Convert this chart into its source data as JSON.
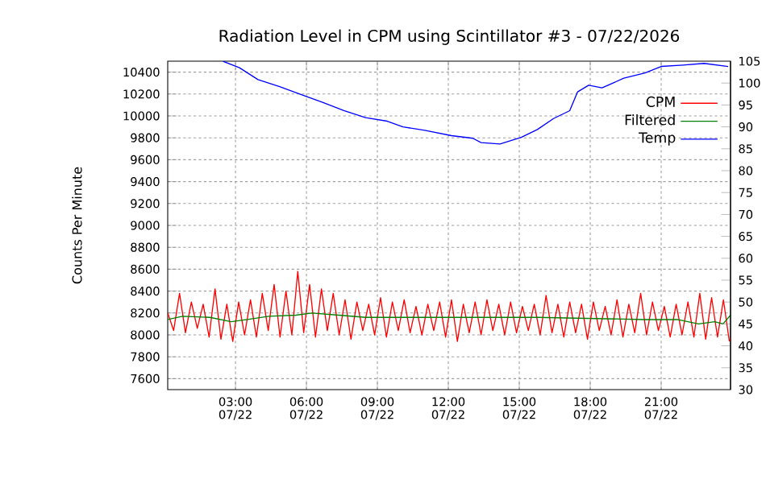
{
  "chart_data": {
    "type": "line",
    "title": "Radiation Level in CPM using Scintillator #3 - 07/22/2026",
    "ylabel": "Counts Per Minute",
    "xlim": [
      "2026-07-22T00:08",
      "2026-07-22T23:56"
    ],
    "ylim": [
      7500,
      10500
    ],
    "y2lim": [
      30,
      105
    ],
    "xticks": [
      {
        "value": "2026-07-22T03:00",
        "label": "03:00 07/22"
      },
      {
        "value": "2026-07-22T06:00",
        "label": "06:00 07/22"
      },
      {
        "value": "2026-07-22T09:00",
        "label": "09:00 07/22"
      },
      {
        "value": "2026-07-22T12:00",
        "label": "12:00 07/22"
      },
      {
        "value": "2026-07-22T15:00",
        "label": "15:00 07/22"
      },
      {
        "value": "2026-07-22T18:00",
        "label": "18:00 07/22"
      },
      {
        "value": "2026-07-22T21:00",
        "label": "21:00 07/22"
      }
    ],
    "yticks": [
      7600,
      7800,
      8000,
      8200,
      8400,
      8600,
      8800,
      9000,
      9200,
      9400,
      9600,
      9800,
      10000,
      10200,
      10400
    ],
    "y2ticks": [
      30,
      35,
      40,
      45,
      50,
      55,
      60,
      65,
      70,
      75,
      80,
      85,
      90,
      95,
      100,
      105
    ],
    "grid": true,
    "legend": "top right",
    "series": [
      {
        "name": "CPM",
        "color": "#ff0000",
        "x": [
          "2026-07-22T00:08",
          "2026-07-22T00:23",
          "2026-07-22T00:38",
          "2026-07-22T00:53",
          "2026-07-22T01:08",
          "2026-07-22T01:23",
          "2026-07-22T01:38",
          "2026-07-22T01:53",
          "2026-07-22T02:08",
          "2026-07-22T02:23",
          "2026-07-22T02:38",
          "2026-07-22T02:53",
          "2026-07-22T03:08",
          "2026-07-22T03:23",
          "2026-07-22T03:38",
          "2026-07-22T03:53",
          "2026-07-22T04:08",
          "2026-07-22T04:23",
          "2026-07-22T04:38",
          "2026-07-22T04:53",
          "2026-07-22T05:08",
          "2026-07-22T05:23",
          "2026-07-22T05:38",
          "2026-07-22T05:53",
          "2026-07-22T06:08",
          "2026-07-22T06:23",
          "2026-07-22T06:38",
          "2026-07-22T06:53",
          "2026-07-22T07:08",
          "2026-07-22T07:23",
          "2026-07-22T07:38",
          "2026-07-22T07:53",
          "2026-07-22T08:08",
          "2026-07-22T08:23",
          "2026-07-22T08:38",
          "2026-07-22T08:53",
          "2026-07-22T09:08",
          "2026-07-22T09:23",
          "2026-07-22T09:38",
          "2026-07-22T09:53",
          "2026-07-22T10:08",
          "2026-07-22T10:23",
          "2026-07-22T10:38",
          "2026-07-22T10:53",
          "2026-07-22T11:08",
          "2026-07-22T11:23",
          "2026-07-22T11:38",
          "2026-07-22T11:53",
          "2026-07-22T12:08",
          "2026-07-22T12:23",
          "2026-07-22T12:38",
          "2026-07-22T12:53",
          "2026-07-22T13:08",
          "2026-07-22T13:23",
          "2026-07-22T13:38",
          "2026-07-22T13:53",
          "2026-07-22T14:08",
          "2026-07-22T14:23",
          "2026-07-22T14:38",
          "2026-07-22T14:53",
          "2026-07-22T15:08",
          "2026-07-22T15:23",
          "2026-07-22T15:38",
          "2026-07-22T15:53",
          "2026-07-22T16:08",
          "2026-07-22T16:23",
          "2026-07-22T16:38",
          "2026-07-22T16:53",
          "2026-07-22T17:08",
          "2026-07-22T17:23",
          "2026-07-22T17:38",
          "2026-07-22T17:53",
          "2026-07-22T18:08",
          "2026-07-22T18:23",
          "2026-07-22T18:38",
          "2026-07-22T18:53",
          "2026-07-22T19:08",
          "2026-07-22T19:23",
          "2026-07-22T19:38",
          "2026-07-22T19:53",
          "2026-07-22T20:08",
          "2026-07-22T20:23",
          "2026-07-22T20:38",
          "2026-07-22T20:53",
          "2026-07-22T21:08",
          "2026-07-22T21:23",
          "2026-07-22T21:38",
          "2026-07-22T21:53",
          "2026-07-22T22:08",
          "2026-07-22T22:23",
          "2026-07-22T22:38",
          "2026-07-22T22:53",
          "2026-07-22T23:08",
          "2026-07-22T23:23",
          "2026-07-22T23:38",
          "2026-07-22T23:53"
        ],
        "values": [
          8200,
          8040,
          8380,
          8020,
          8300,
          8060,
          8280,
          7980,
          8420,
          7960,
          8280,
          7940,
          8300,
          8000,
          8320,
          7980,
          8380,
          8040,
          8460,
          7980,
          8400,
          8000,
          8580,
          8020,
          8460,
          7980,
          8420,
          8040,
          8380,
          8000,
          8320,
          7960,
          8300,
          8040,
          8280,
          8000,
          8340,
          7980,
          8300,
          8040,
          8320,
          8020,
          8260,
          8000,
          8280,
          8040,
          8300,
          7980,
          8320,
          7940,
          8280,
          8020,
          8300,
          8000,
          8320,
          8040,
          8280,
          8000,
          8300,
          8020,
          8260,
          8040,
          8280,
          8000,
          8360,
          8020,
          8280,
          7980,
          8300,
          8020,
          8280,
          7960,
          8300,
          8040,
          8260,
          8000,
          8320,
          7980,
          8280,
          8020,
          8380,
          8000,
          8300,
          8040,
          8260,
          7980,
          8280,
          8000,
          8300,
          7980,
          8380,
          7960,
          8340,
          7980,
          8320,
          7940
        ]
      },
      {
        "name": "Filtered",
        "color": "#008000",
        "x": [
          "2026-07-22T00:08",
          "2026-07-22T00:46",
          "2026-07-22T01:55",
          "2026-07-22T02:49",
          "2026-07-22T03:30",
          "2026-07-22T04:25",
          "2026-07-22T05:33",
          "2026-07-22T06:14",
          "2026-07-22T07:22",
          "2026-07-22T08:30",
          "2026-07-22T10:05",
          "2026-07-22T12:08",
          "2026-07-22T13:30",
          "2026-07-22T15:47",
          "2026-07-22T18:03",
          "2026-07-22T20:19",
          "2026-07-22T21:41",
          "2026-07-22T22:35",
          "2026-07-22T23:16",
          "2026-07-22T23:37",
          "2026-07-22T23:56"
        ],
        "values": [
          8140,
          8170,
          8160,
          8120,
          8140,
          8170,
          8180,
          8200,
          8180,
          8160,
          8160,
          8160,
          8160,
          8160,
          8150,
          8140,
          8140,
          8100,
          8120,
          8100,
          8180
        ]
      },
      {
        "name": "Temp",
        "color": "#0000ff",
        "axis": "y2",
        "x": [
          "2026-07-22T02:28",
          "2026-07-22T03:10",
          "2026-07-22T03:57",
          "2026-07-22T04:52",
          "2026-07-22T05:46",
          "2026-07-22T06:41",
          "2026-07-22T07:35",
          "2026-07-22T08:30",
          "2026-07-22T09:25",
          "2026-07-22T10:05",
          "2026-07-22T11:00",
          "2026-07-22T12:08",
          "2026-07-22T13:02",
          "2026-07-22T13:23",
          "2026-07-22T14:11",
          "2026-07-22T15:05",
          "2026-07-22T15:46",
          "2026-07-22T16:27",
          "2026-07-22T17:08",
          "2026-07-22T17:28",
          "2026-07-22T17:56",
          "2026-07-22T18:30",
          "2026-07-22T19:25",
          "2026-07-22T20:19",
          "2026-07-22T21:00",
          "2026-07-22T21:55",
          "2026-07-22T22:49",
          "2026-07-22T23:50"
        ],
        "values": [
          105,
          103.5,
          100.8,
          99.2,
          97.4,
          95.6,
          93.7,
          92.1,
          91.3,
          90.0,
          89.2,
          88.0,
          87.4,
          86.4,
          86.1,
          87.6,
          89.4,
          91.9,
          93.7,
          98.0,
          99.5,
          98.9,
          101.1,
          102.3,
          103.8,
          104.1,
          104.5,
          103.8
        ]
      }
    ]
  }
}
